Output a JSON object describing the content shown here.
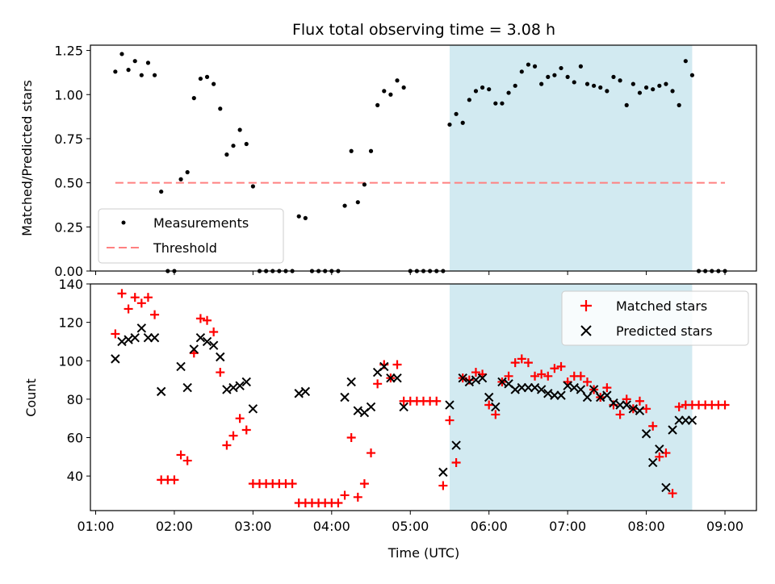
{
  "title": "Flux total observing time = 3.08 h",
  "chart_data": [
    {
      "type": "scatter",
      "panel": "top",
      "ylabel": "Matched/Predicted stars",
      "ylim": [
        0,
        1.28
      ],
      "xlim": [
        "00:56",
        "09:24"
      ],
      "yticks": [
        "0.00",
        "0.25",
        "0.50",
        "0.75",
        "1.00",
        "1.25"
      ],
      "ytick_values": [
        0,
        0.25,
        0.5,
        0.75,
        1.0,
        1.25
      ],
      "highlight_span": [
        "05:30",
        "08:35"
      ],
      "highlight_color": "#add8e6",
      "legend_position": "lower-left",
      "series": [
        {
          "name": "Measurements",
          "kind": "points",
          "color": "#000000",
          "x": [
            "01:15",
            "01:20",
            "01:25",
            "01:30",
            "01:35",
            "01:40",
            "01:45",
            "01:50",
            "01:55",
            "02:00",
            "02:05",
            "02:10",
            "02:15",
            "02:20",
            "02:25",
            "02:30",
            "02:35",
            "02:40",
            "02:45",
            "02:50",
            "02:55",
            "03:00",
            "03:05",
            "03:10",
            "03:15",
            "03:20",
            "03:25",
            "03:30",
            "03:35",
            "03:40",
            "03:45",
            "03:50",
            "03:55",
            "04:00",
            "04:05",
            "04:10",
            "04:15",
            "04:20",
            "04:25",
            "04:30",
            "04:35",
            "04:40",
            "04:45",
            "04:50",
            "04:55",
            "05:00",
            "05:05",
            "05:10",
            "05:15",
            "05:20",
            "05:25",
            "05:30",
            "05:35",
            "05:40",
            "05:45",
            "05:50",
            "05:55",
            "06:00",
            "06:05",
            "06:10",
            "06:15",
            "06:20",
            "06:25",
            "06:30",
            "06:35",
            "06:40",
            "06:45",
            "06:50",
            "06:55",
            "07:00",
            "07:05",
            "07:10",
            "07:15",
            "07:20",
            "07:25",
            "07:30",
            "07:35",
            "07:40",
            "07:45",
            "07:50",
            "07:55",
            "08:00",
            "08:05",
            "08:10",
            "08:15",
            "08:20",
            "08:25",
            "08:30",
            "08:35",
            "08:40",
            "08:45",
            "08:50",
            "08:55",
            "09:00"
          ],
          "y": [
            1.13,
            1.23,
            1.14,
            1.19,
            1.11,
            1.18,
            1.11,
            0.45,
            0,
            0,
            0.52,
            0.56,
            0.98,
            1.09,
            1.1,
            1.06,
            0.92,
            0.66,
            0.71,
            0.8,
            0.72,
            0.48,
            0,
            0,
            0,
            0,
            0,
            0,
            0.31,
            0.3,
            0,
            0,
            0,
            0,
            0,
            0.37,
            0.68,
            0.39,
            0.49,
            0.68,
            0.94,
            1.02,
            1.0,
            1.08,
            1.04,
            0,
            0,
            0,
            0,
            0,
            0,
            0.83,
            0.89,
            0.84,
            0.97,
            1.02,
            1.04,
            1.03,
            0.95,
            0.95,
            1.01,
            1.05,
            1.13,
            1.17,
            1.16,
            1.06,
            1.1,
            1.11,
            1.15,
            1.1,
            1.07,
            1.16,
            1.06,
            1.05,
            1.04,
            1.02,
            1.1,
            1.08,
            0.94,
            1.06,
            1.01,
            1.04,
            1.03,
            1.05,
            1.06,
            1.02,
            0.94,
            1.19,
            1.11,
            0,
            0,
            0,
            0,
            0
          ]
        },
        {
          "name": "Threshold",
          "kind": "dashed-line",
          "color": "#ff8080",
          "x": [
            "01:15",
            "09:00"
          ],
          "y": [
            0.5,
            0.5
          ]
        }
      ]
    },
    {
      "type": "scatter",
      "panel": "bottom",
      "ylabel": "Count",
      "xlabel": "Time (UTC)",
      "ylim": [
        22,
        140
      ],
      "xlim": [
        "00:56",
        "09:24"
      ],
      "yticks": [
        "40",
        "60",
        "80",
        "100",
        "120",
        "140"
      ],
      "ytick_values": [
        40,
        60,
        80,
        100,
        120,
        140
      ],
      "xticks": [
        "01:00",
        "02:00",
        "03:00",
        "04:00",
        "05:00",
        "06:00",
        "07:00",
        "08:00",
        "09:00"
      ],
      "highlight_span": [
        "05:30",
        "08:35"
      ],
      "highlight_color": "#add8e6",
      "legend_position": "upper-right",
      "series": [
        {
          "name": "Matched stars",
          "marker": "plus",
          "color": "#ff0000",
          "x": [
            "01:15",
            "01:20",
            "01:25",
            "01:30",
            "01:35",
            "01:40",
            "01:45",
            "01:50",
            "01:55",
            "02:00",
            "02:05",
            "02:10",
            "02:15",
            "02:20",
            "02:25",
            "02:30",
            "02:35",
            "02:40",
            "02:45",
            "02:50",
            "02:55",
            "03:00",
            "03:05",
            "03:10",
            "03:15",
            "03:20",
            "03:25",
            "03:30",
            "03:35",
            "03:40",
            "03:45",
            "03:50",
            "03:55",
            "04:00",
            "04:05",
            "04:10",
            "04:15",
            "04:20",
            "04:25",
            "04:30",
            "04:35",
            "04:40",
            "04:45",
            "04:50",
            "04:55",
            "05:00",
            "05:05",
            "05:10",
            "05:15",
            "05:20",
            "05:25",
            "05:30",
            "05:35",
            "05:40",
            "05:45",
            "05:50",
            "05:55",
            "06:00",
            "06:05",
            "06:10",
            "06:15",
            "06:20",
            "06:25",
            "06:30",
            "06:35",
            "06:40",
            "06:45",
            "06:50",
            "06:55",
            "07:00",
            "07:05",
            "07:10",
            "07:15",
            "07:20",
            "07:25",
            "07:30",
            "07:35",
            "07:40",
            "07:45",
            "07:50",
            "07:55",
            "08:00",
            "08:05",
            "08:10",
            "08:15",
            "08:20",
            "08:25",
            "08:30",
            "08:35",
            "08:40",
            "08:45",
            "08:50",
            "08:55",
            "09:00"
          ],
          "y": [
            114,
            135,
            127,
            133,
            130,
            133,
            124,
            38,
            38,
            38,
            51,
            48,
            104,
            122,
            121,
            115,
            94,
            56,
            61,
            70,
            64,
            36,
            36,
            36,
            36,
            36,
            36,
            36,
            26,
            26,
            26,
            26,
            26,
            26,
            26,
            30,
            60,
            29,
            36,
            52,
            88,
            98,
            91,
            98,
            79,
            79,
            79,
            79,
            79,
            79,
            35,
            69,
            47,
            91,
            90,
            94,
            93,
            77,
            72,
            89,
            92,
            99,
            101,
            99,
            92,
            93,
            92,
            96,
            97,
            89,
            92,
            92,
            89,
            85,
            81,
            86,
            77,
            72,
            80,
            75,
            79,
            75,
            66,
            50,
            52,
            31,
            76,
            77,
            77,
            77,
            77,
            77,
            77,
            77
          ]
        },
        {
          "name": "Predicted stars",
          "marker": "x",
          "color": "#000000",
          "x": [
            "01:15",
            "01:20",
            "01:25",
            "01:30",
            "01:35",
            "01:40",
            "01:45",
            "01:50",
            "02:05",
            "02:10",
            "02:15",
            "02:20",
            "02:25",
            "02:30",
            "02:35",
            "02:40",
            "02:45",
            "02:50",
            "02:55",
            "03:00",
            "03:35",
            "03:40",
            "04:10",
            "04:15",
            "04:20",
            "04:25",
            "04:30",
            "04:35",
            "04:40",
            "04:45",
            "04:50",
            "04:55",
            "05:25",
            "05:30",
            "05:35",
            "05:40",
            "05:45",
            "05:50",
            "05:55",
            "06:00",
            "06:05",
            "06:10",
            "06:15",
            "06:20",
            "06:25",
            "06:30",
            "06:35",
            "06:40",
            "06:45",
            "06:50",
            "06:55",
            "07:00",
            "07:05",
            "07:10",
            "07:15",
            "07:20",
            "07:25",
            "07:30",
            "07:35",
            "07:40",
            "07:45",
            "07:50",
            "07:55",
            "08:00",
            "08:05",
            "08:10",
            "08:15",
            "08:20",
            "08:25",
            "08:30",
            "08:35"
          ],
          "y": [
            101,
            110,
            111,
            112,
            117,
            112,
            112,
            84,
            97,
            86,
            106,
            112,
            110,
            108,
            102,
            85,
            86,
            87,
            89,
            75,
            83,
            84,
            81,
            89,
            74,
            73,
            76,
            94,
            97,
            91,
            91,
            76,
            42,
            77,
            56,
            91,
            89,
            90,
            91,
            81,
            76,
            89,
            88,
            85,
            86,
            86,
            86,
            85,
            83,
            82,
            82,
            87,
            86,
            85,
            81,
            85,
            81,
            82,
            78,
            77,
            77,
            75,
            74,
            62,
            47,
            54,
            34,
            64,
            69,
            69,
            69
          ]
        }
      ]
    }
  ]
}
